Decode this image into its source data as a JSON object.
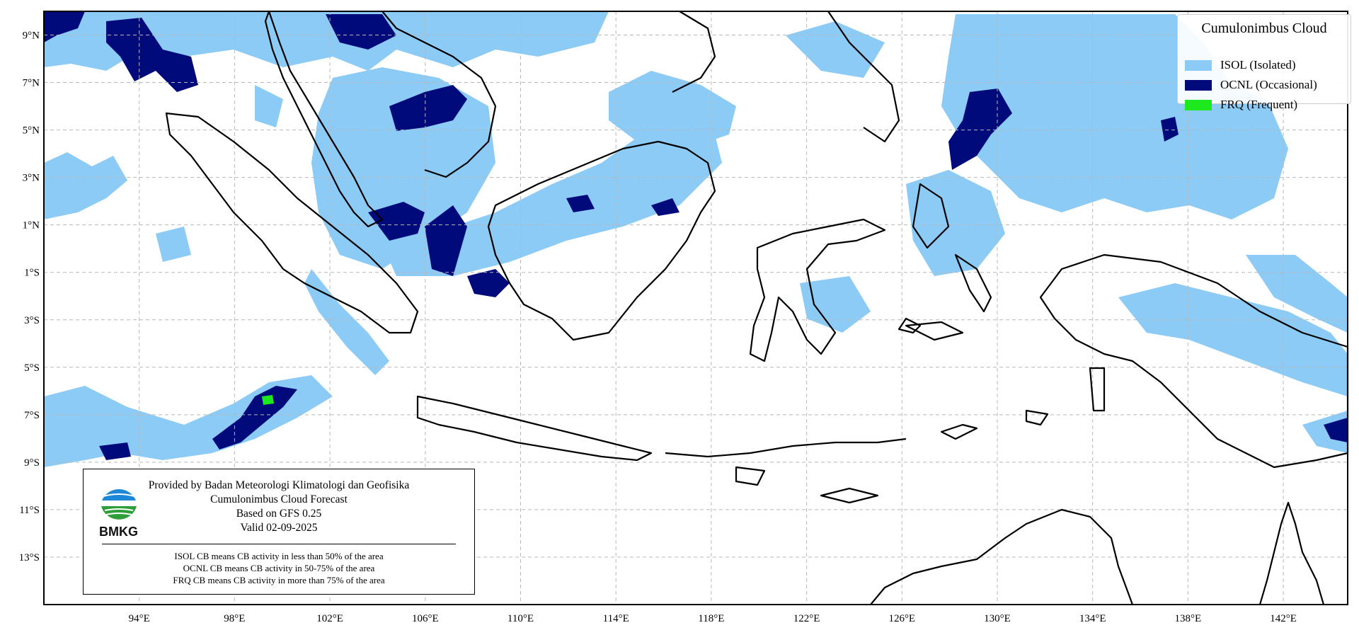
{
  "map": {
    "lat_labels": [
      "9°N",
      "7°N",
      "5°N",
      "3°N",
      "1°N",
      "1°S",
      "3°S",
      "5°S",
      "7°S",
      "9°S",
      "11°S",
      "13°S"
    ],
    "lon_labels": [
      "94°E",
      "98°E",
      "102°E",
      "106°E",
      "110°E",
      "114°E",
      "118°E",
      "122°E",
      "126°E",
      "130°E",
      "134°E",
      "138°E",
      "142°E"
    ],
    "extent": {
      "lon_min": 90,
      "lon_max": 144.7,
      "lat_min": -15,
      "lat_max": 10
    },
    "colors": {
      "isol": "#8ccbf5",
      "ocnl": "#000a7a",
      "frq": "#1ee81e",
      "coast": "#000000",
      "grid": "#b8b8b8"
    }
  },
  "legend": {
    "title": "Cumulonimbus Cloud",
    "items": [
      {
        "label": "ISOL (Isolated)",
        "color": "#8ccbf5"
      },
      {
        "label": "OCNL (Occasional)",
        "color": "#000a7a"
      },
      {
        "label": "FRQ (Frequent)",
        "color": "#1ee81e"
      }
    ]
  },
  "info": {
    "provider": "Provided by Badan Meteorologi Klimatologi dan Geofisika",
    "product": "Cumulonimbus Cloud Forecast",
    "model": "Based on GFS 0.25",
    "valid": "Valid 02-09-2025",
    "logo_text": "BMKG",
    "notes": [
      "ISOL CB means CB activity in less than 50% of the area",
      "OCNL CB means CB activity in 50-75% of the area",
      "FRQ CB means CB activity in more than 75% of the area"
    ]
  }
}
